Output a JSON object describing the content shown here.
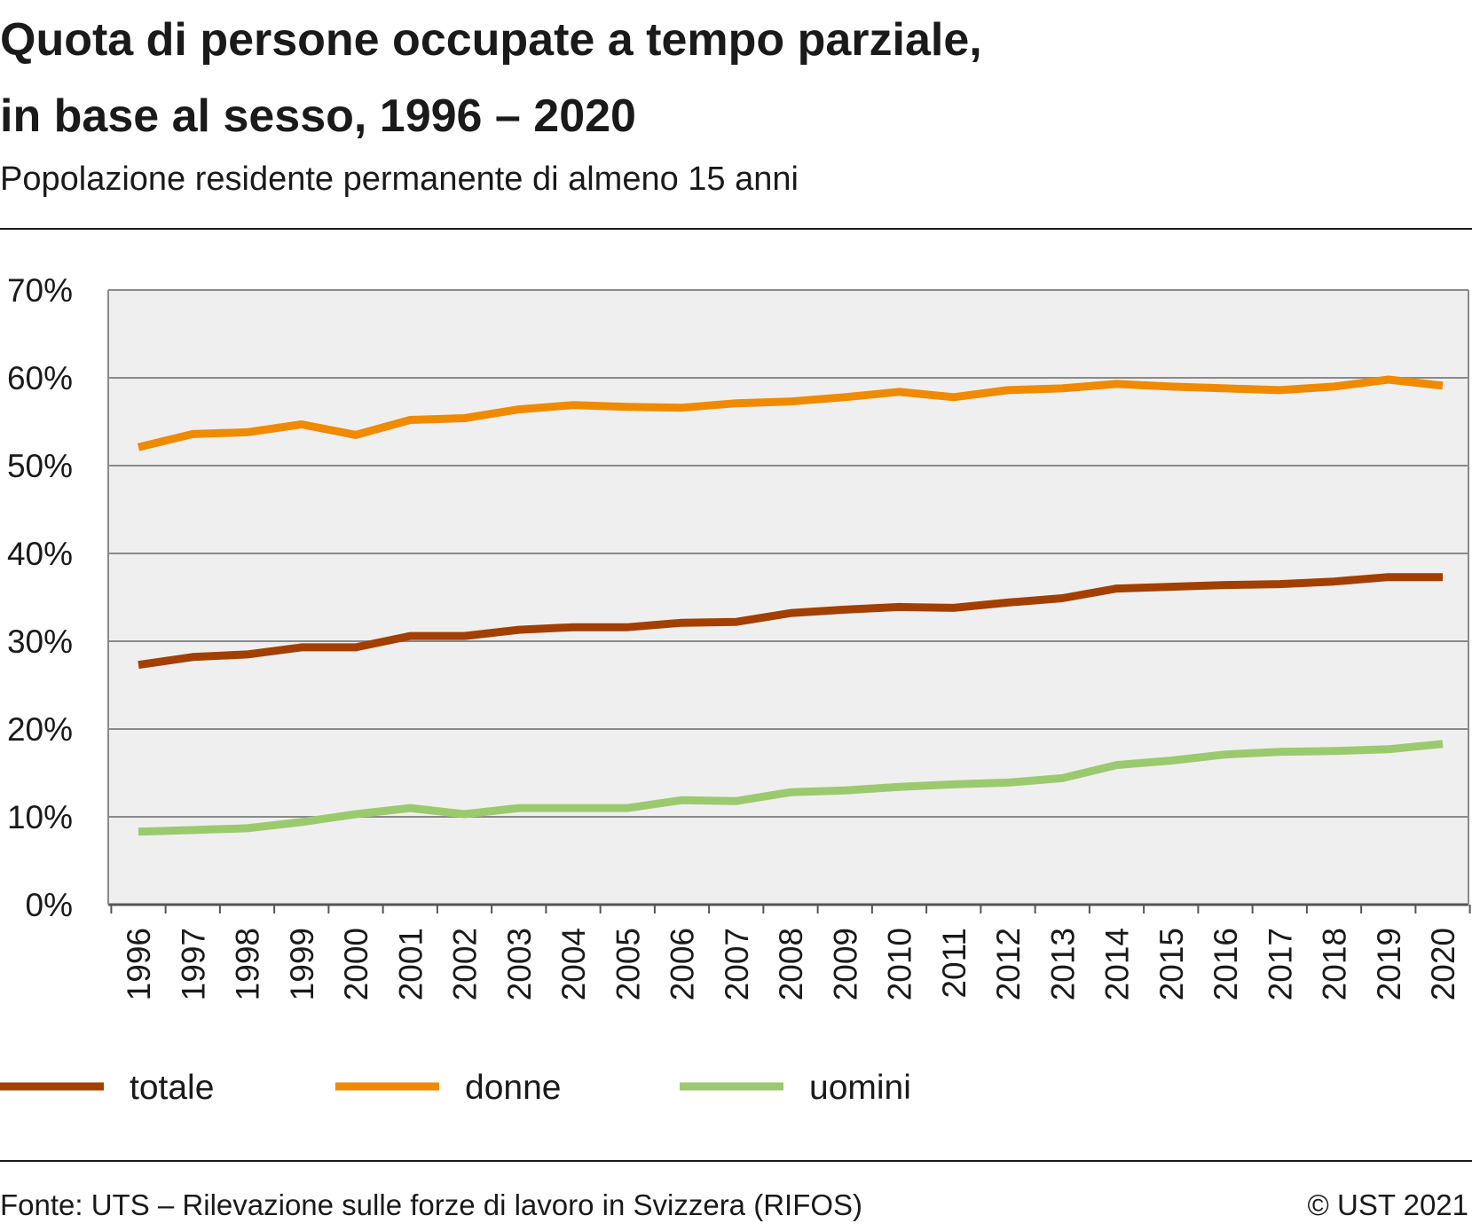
{
  "header": {
    "title_line1": "Quota di persone occupate a tempo parziale,",
    "title_line2": "in base al sesso, 1996 – 2020",
    "subtitle": "Popolazione residente permanente di almeno 15 anni"
  },
  "footer": {
    "source": "Fonte: UTS – Rilevazione sulle forze di lavoro in Svizzera (RIFOS)",
    "copyright": "© UST 2021"
  },
  "chart_data": {
    "type": "line",
    "title": "Quota di persone occupate a tempo parziale, in base al sesso, 1996 – 2020",
    "subtitle": "Popolazione residente permanente di almeno 15 anni",
    "xlabel": "",
    "ylabel": "",
    "ylim": [
      0,
      70
    ],
    "yticks": [
      0,
      10,
      20,
      30,
      40,
      50,
      60,
      70
    ],
    "ytick_labels": [
      "0%",
      "10%",
      "20%",
      "30%",
      "40%",
      "50%",
      "60%",
      "70%"
    ],
    "grid": true,
    "legend_position": "bottom",
    "categories": [
      "1996",
      "1997",
      "1998",
      "1999",
      "2000",
      "2001",
      "2002",
      "2003",
      "2004",
      "2005",
      "2006",
      "2007",
      "2008",
      "2009",
      "2010",
      "2011",
      "2012",
      "2013",
      "2014",
      "2015",
      "2016",
      "2017",
      "2018",
      "2019",
      "2020"
    ],
    "series": [
      {
        "name": "totale",
        "color": "#a33f00",
        "values": [
          27.3,
          28.2,
          28.5,
          29.3,
          29.3,
          30.6,
          30.6,
          31.3,
          31.6,
          31.6,
          32.1,
          32.2,
          33.2,
          33.6,
          33.9,
          33.8,
          34.4,
          34.9,
          36.0,
          36.2,
          36.4,
          36.5,
          36.8,
          37.3,
          37.3
        ]
      },
      {
        "name": "donne",
        "color": "#f08a00",
        "values": [
          52.1,
          53.6,
          53.8,
          54.7,
          53.5,
          55.2,
          55.4,
          56.4,
          56.9,
          56.7,
          56.6,
          57.1,
          57.3,
          57.8,
          58.4,
          57.8,
          58.6,
          58.8,
          59.3,
          59.0,
          58.8,
          58.6,
          59.0,
          59.8,
          59.1
        ]
      },
      {
        "name": "uomini",
        "color": "#9bca6e",
        "values": [
          8.3,
          8.5,
          8.7,
          9.4,
          10.3,
          11.0,
          10.3,
          11.0,
          11.0,
          11.0,
          11.9,
          11.8,
          12.8,
          13.0,
          13.4,
          13.7,
          13.9,
          14.4,
          15.9,
          16.4,
          17.1,
          17.4,
          17.5,
          17.7,
          18.3
        ]
      }
    ]
  }
}
